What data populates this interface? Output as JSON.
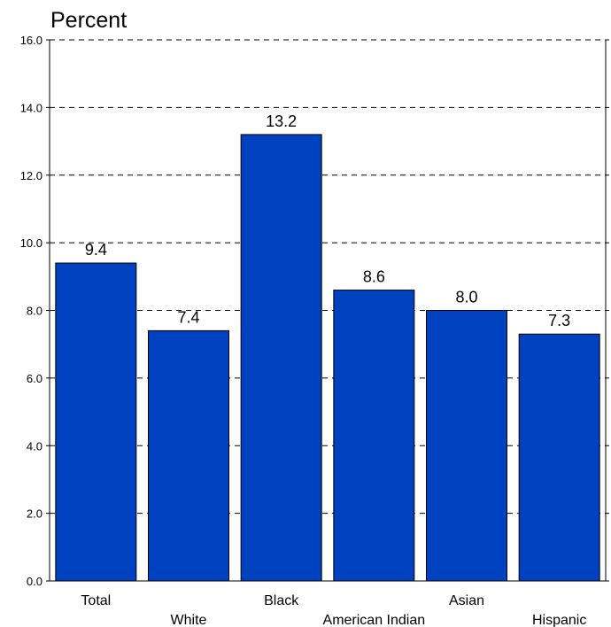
{
  "chart_data": {
    "type": "bar",
    "ylabel": "Percent",
    "categories": [
      "Total",
      "White",
      "Black",
      "American Indian",
      "Asian",
      "Hispanic"
    ],
    "values": [
      9.4,
      7.4,
      13.2,
      8.6,
      8.0,
      7.3
    ],
    "value_labels": [
      "9.4",
      "7.4",
      "13.2",
      "8.6",
      "8.0",
      "7.3"
    ],
    "ylim": [
      0,
      16
    ],
    "yticks": [
      0,
      2,
      4,
      6,
      8,
      10,
      12,
      14,
      16
    ],
    "ytick_labels": [
      "0.0",
      "2.0",
      "4.0",
      "6.0",
      "8.0",
      "10.0",
      "12.0",
      "14.0",
      "16.0"
    ],
    "grid": true,
    "legend": "none",
    "bar_color": "#0041C0"
  }
}
